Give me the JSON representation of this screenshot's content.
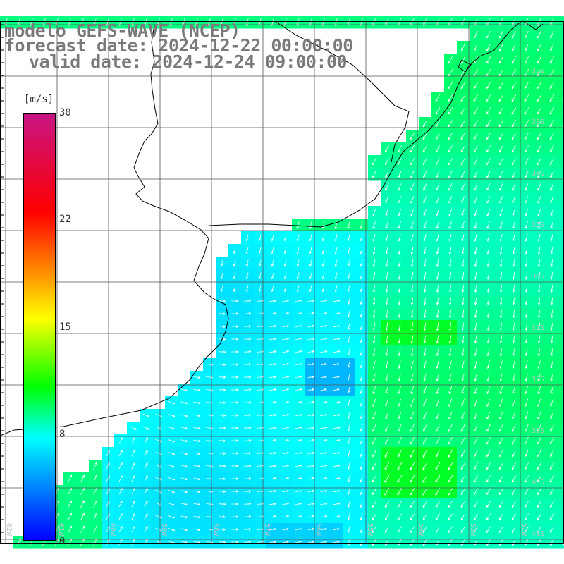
{
  "title": {
    "model": "modelo GEFS-WAVE (NCEP)",
    "forecast": "forecast date: 2024-12-22 00:00:00",
    "valid": "valid date: 2024-12-24 09:00:00"
  },
  "colorbar": {
    "unit": "[m/s]",
    "ticks": [
      "30",
      "22",
      "15",
      "8",
      "0"
    ],
    "colors": [
      "#c71485",
      "#ff0000",
      "#ff8c00",
      "#ffff00",
      "#00ff00",
      "#00ffff",
      "#0000ff"
    ]
  },
  "map": {
    "latitude_labels": [
      "32S",
      "33S",
      "34S",
      "35S",
      "36S",
      "37S",
      "38S",
      "39S",
      "40S",
      "41S"
    ],
    "longitude_labels": [
      "62W",
      "61W",
      "60W",
      "59W",
      "58W",
      "57W",
      "56W",
      "55W",
      "54W",
      "53W",
      "52W"
    ],
    "land_color": "#ffffff",
    "coast_color": "#000000",
    "grid_color": "#555555",
    "vector_color": "#ffffff"
  }
}
